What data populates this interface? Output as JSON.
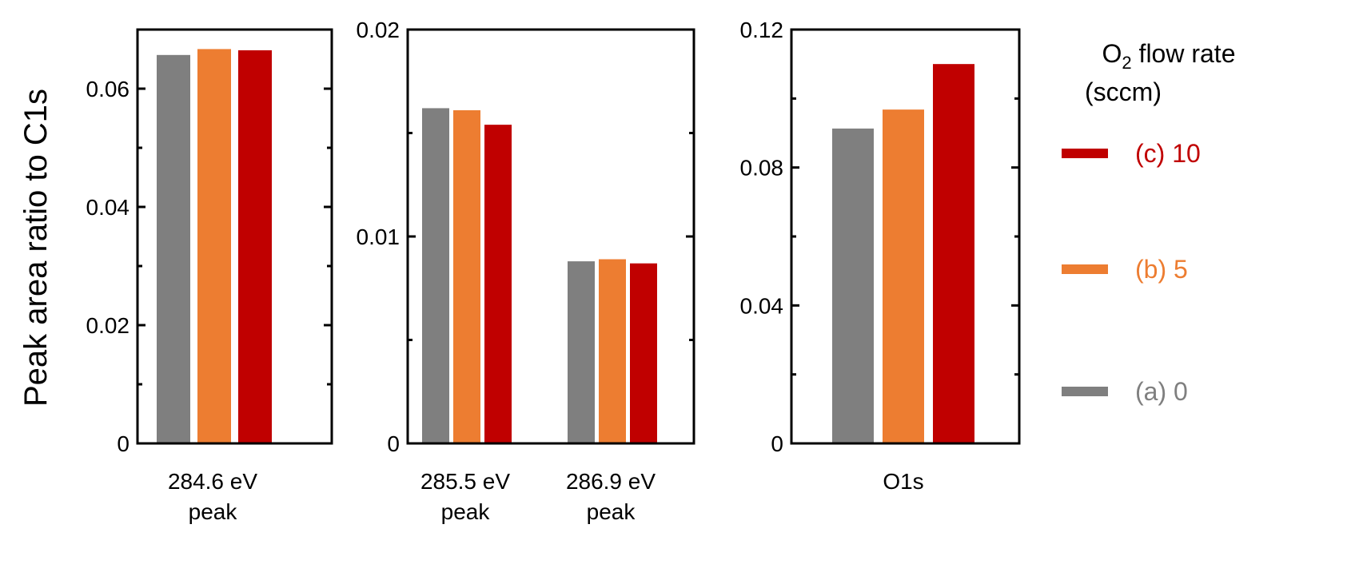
{
  "chart_data": [
    {
      "type": "bar",
      "panel": "left",
      "categories": [
        [
          "284.6 eV",
          "peak"
        ]
      ],
      "series": [
        {
          "name": "(a) 0",
          "values": [
            0.0657
          ]
        },
        {
          "name": "(b) 5",
          "values": [
            0.0667
          ]
        },
        {
          "name": "(c) 10",
          "values": [
            0.0665
          ]
        }
      ],
      "ylim": [
        0,
        0.07
      ],
      "yticks": [
        "0",
        "0.02",
        "0.04",
        "0.06"
      ],
      "ytick_values": [
        0,
        0.02,
        0.04,
        0.06
      ],
      "ylabel": "Peak area ratio to C1s",
      "grid": false
    },
    {
      "type": "bar",
      "panel": "middle",
      "categories": [
        [
          "285.5 eV",
          "peak"
        ],
        [
          "286.9 eV",
          "peak"
        ]
      ],
      "series": [
        {
          "name": "(a) 0",
          "values": [
            0.0162,
            0.0088
          ]
        },
        {
          "name": "(b) 5",
          "values": [
            0.0161,
            0.0089
          ]
        },
        {
          "name": "(c) 10",
          "values": [
            0.0154,
            0.0087
          ]
        }
      ],
      "ylim": [
        0,
        0.02
      ],
      "yticks": [
        "0",
        "0.01",
        "0.02"
      ],
      "ytick_values": [
        0,
        0.01,
        0.02
      ],
      "grid": false
    },
    {
      "type": "bar",
      "panel": "right",
      "categories": [
        [
          "O1s"
        ]
      ],
      "series": [
        {
          "name": "(a) 0",
          "values": [
            0.0913
          ]
        },
        {
          "name": "(b) 5",
          "values": [
            0.0968
          ]
        },
        {
          "name": "(c) 10",
          "values": [
            0.11
          ]
        }
      ],
      "ylim": [
        0,
        0.12
      ],
      "yticks": [
        "0",
        "0.04",
        "0.08",
        "0.12"
      ],
      "ytick_values": [
        0,
        0.04,
        0.08,
        0.12
      ],
      "grid": false
    }
  ],
  "legend": {
    "title_main": "O",
    "title_sub": "2",
    "title_rest": " flow rate",
    "title_line2": "(sccm)",
    "placement": "right",
    "items": [
      {
        "label": "(c) 10",
        "color": "#c00000"
      },
      {
        "label": "(b) 5",
        "color": "#ed7d31"
      },
      {
        "label": "(a) 0",
        "color": "#7f7f7f"
      }
    ]
  },
  "colors": {
    "(a) 0": "#7f7f7f",
    "(b) 5": "#ed7d31",
    "(c) 10": "#c00000",
    "axis": "#000000"
  }
}
